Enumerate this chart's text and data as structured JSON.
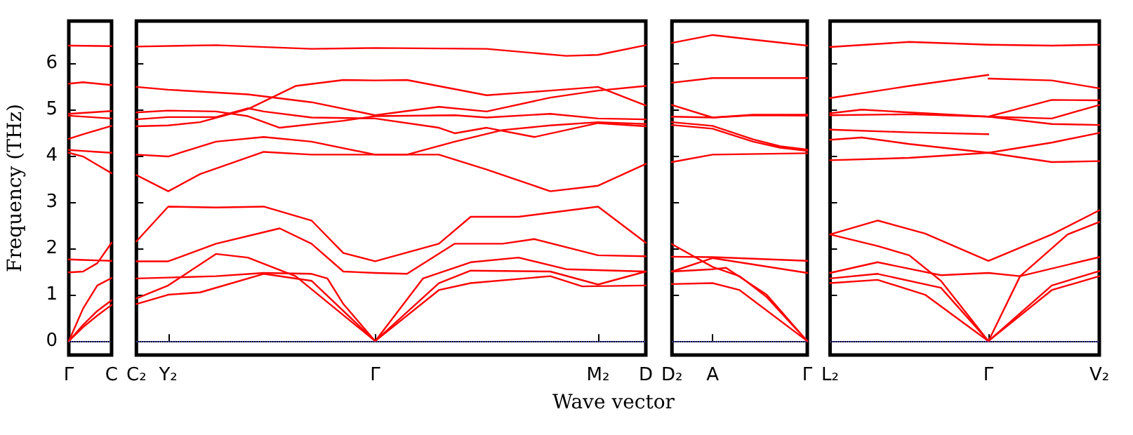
{
  "chart_data": [
    {
      "type": "line",
      "ylabel": "Frequency (THz)",
      "categories": [
        "Γ",
        null,
        null,
        "C"
      ],
      "ylim": [
        -0.3,
        6.9
      ],
      "yticks": [
        0,
        1,
        2,
        3,
        4,
        5,
        6
      ],
      "ref_lines": [
        {
          "axis": "y",
          "value": 0,
          "color": "#6666ff",
          "line_style": "dotted"
        }
      ],
      "series": [
        {
          "color": "#ff0000",
          "values": [
            6.37,
            null,
            null,
            6.36
          ]
        },
        {
          "color": "#ff0000",
          "values": [
            5.55,
            5.58,
            null,
            5.52
          ]
        },
        {
          "color": "#ff0000",
          "values": [
            4.9,
            null,
            null,
            4.96
          ]
        },
        {
          "color": "#ff0000",
          "values": [
            4.86,
            null,
            null,
            4.8
          ]
        },
        {
          "color": "#ff0000",
          "values": [
            4.36,
            4.46,
            4.55,
            4.64
          ]
        },
        {
          "color": "#ff0000",
          "values": [
            4.12,
            4.1,
            4.08,
            4.06
          ]
        },
        {
          "color": "#ff0000",
          "values": [
            4.06,
            3.98,
            3.8,
            3.62
          ]
        },
        {
          "color": "#ff0000",
          "values": [
            1.76,
            1.75,
            1.74,
            1.73
          ]
        },
        {
          "color": "#ff0000",
          "values": [
            1.48,
            1.5,
            1.68,
            2.12
          ]
        },
        {
          "color": "#ff0000",
          "values": [
            0,
            0.7,
            1.2,
            1.36
          ]
        },
        {
          "color": "#ff0000",
          "values": [
            0,
            0.35,
            0.65,
            0.88
          ]
        },
        {
          "color": "#ff0000",
          "values": [
            0,
            0.3,
            0.55,
            0.78
          ]
        }
      ]
    },
    {
      "type": "line",
      "xlabel": "Wave vector",
      "tick_labels": "x",
      "categories": [
        "C₂",
        null,
        "Y₂",
        null,
        null,
        null,
        null,
        null,
        null,
        null,
        null,
        null,
        null,
        null,
        null,
        "Γ",
        null,
        null,
        null,
        null,
        null,
        null,
        null,
        null,
        null,
        null,
        null,
        null,
        null,
        "M₂",
        null,
        null,
        "D"
      ],
      "ylim": [
        -0.3,
        6.9
      ],
      "yticks": [
        0,
        1,
        2,
        3,
        4,
        5,
        6
      ],
      "ref_lines": [
        {
          "axis": "y",
          "value": 0,
          "color": "#6666ff",
          "line_style": "dotted"
        }
      ],
      "series": [
        {
          "color": "#ff0000",
          "values": [
            6.35,
            null,
            null,
            null,
            null,
            6.38,
            null,
            null,
            null,
            null,
            null,
            6.3,
            null,
            null,
            null,
            6.32,
            null,
            null,
            null,
            null,
            null,
            null,
            6.3,
            null,
            null,
            null,
            null,
            6.15,
            null,
            6.17,
            null,
            null,
            6.38
          ]
        },
        {
          "color": "#ff0000",
          "values": [
            5.48,
            null,
            5.42,
            null,
            null,
            null,
            null,
            5.32,
            null,
            null,
            null,
            5.15,
            null,
            null,
            null,
            4.87,
            null,
            null,
            null,
            5.05,
            null,
            null,
            4.95,
            null,
            null,
            null,
            5.25,
            null,
            null,
            5.4,
            null,
            null,
            5.5
          ]
        },
        {
          "color": "#ff0000",
          "values": [
            4.63,
            null,
            4.65,
            null,
            4.72,
            null,
            null,
            5.0,
            null,
            null,
            5.5,
            null,
            null,
            5.63,
            null,
            5.62,
            null,
            5.63,
            null,
            null,
            null,
            null,
            5.3,
            null,
            null,
            null,
            5.4,
            null,
            null,
            5.48,
            null,
            null,
            5.08
          ]
        },
        {
          "color": "#ff0000",
          "values": [
            4.93,
            null,
            4.97,
            null,
            null,
            4.95,
            null,
            4.85,
            null,
            4.6,
            null,
            null,
            null,
            4.75,
            null,
            4.85,
            null,
            null,
            null,
            null,
            4.87,
            null,
            4.82,
            null,
            null,
            null,
            4.9,
            null,
            null,
            4.8,
            null,
            null,
            4.78
          ]
        },
        {
          "color": "#ff0000",
          "values": [
            4.78,
            null,
            4.83,
            null,
            null,
            4.83,
            null,
            5.02,
            4.95,
            null,
            null,
            4.82,
            null,
            null,
            null,
            4.8,
            null,
            null,
            null,
            4.6,
            4.48,
            null,
            4.6,
            null,
            null,
            4.4,
            null,
            null,
            null,
            4.7,
            null,
            null,
            4.63
          ]
        },
        {
          "color": "#ff0000",
          "values": [
            4.02,
            null,
            3.98,
            null,
            null,
            4.3,
            null,
            null,
            4.4,
            null,
            null,
            4.3,
            null,
            null,
            null,
            4.02,
            null,
            4.02,
            null,
            null,
            4.3,
            null,
            null,
            4.55,
            null,
            null,
            4.65,
            null,
            null,
            4.72,
            null,
            null,
            4.68
          ]
        },
        {
          "color": "#ff0000",
          "values": [
            3.58,
            null,
            3.23,
            null,
            3.6,
            null,
            null,
            null,
            4.08,
            null,
            null,
            4.02,
            null,
            null,
            null,
            4.02,
            null,
            null,
            null,
            4.02,
            null,
            null,
            3.7,
            null,
            null,
            null,
            3.23,
            null,
            null,
            3.35,
            null,
            null,
            3.82
          ]
        },
        {
          "color": "#ff0000",
          "values": [
            2.15,
            null,
            2.9,
            null,
            null,
            2.88,
            null,
            null,
            2.9,
            null,
            null,
            2.6,
            null,
            1.9,
            null,
            1.72,
            null,
            null,
            null,
            2.1,
            null,
            2.68,
            null,
            null,
            2.68,
            null,
            null,
            null,
            null,
            2.9,
            null,
            null,
            2.12
          ]
        },
        {
          "color": "#ff0000",
          "values": [
            1.72,
            null,
            1.72,
            null,
            null,
            2.1,
            null,
            null,
            null,
            2.43,
            null,
            2.1,
            null,
            1.5,
            null,
            1.47,
            null,
            1.45,
            null,
            null,
            2.1,
            null,
            null,
            2.1,
            null,
            2.2,
            null,
            null,
            null,
            1.85,
            null,
            null,
            1.83
          ]
        },
        {
          "color": "#ff0000",
          "values": [
            1.35,
            null,
            1.37,
            null,
            null,
            1.4,
            null,
            null,
            1.47,
            null,
            null,
            1.45,
            1.35,
            0.8,
            null,
            0,
            null,
            null,
            1.35,
            null,
            null,
            1.7,
            null,
            null,
            1.8,
            null,
            null,
            1.55,
            null,
            null,
            null,
            null,
            1.5
          ]
        },
        {
          "color": "#ff0000",
          "values": [
            0.92,
            null,
            1.2,
            null,
            null,
            1.88,
            null,
            1.8,
            null,
            null,
            1.4,
            null,
            null,
            null,
            null,
            0,
            null,
            null,
            null,
            1.25,
            null,
            1.52,
            null,
            null,
            null,
            null,
            1.5,
            null,
            null,
            1.22,
            null,
            null,
            1.5
          ]
        },
        {
          "color": "#ff0000",
          "values": [
            0.8,
            null,
            1.0,
            null,
            1.05,
            null,
            null,
            null,
            1.45,
            null,
            null,
            1.3,
            null,
            null,
            null,
            0,
            null,
            null,
            null,
            1.1,
            null,
            1.25,
            null,
            null,
            null,
            null,
            1.4,
            null,
            1.18,
            null,
            null,
            null,
            1.2
          ]
        }
      ]
    },
    {
      "type": "line",
      "tick_labels": "x",
      "categories": [
        "D₂",
        null,
        null,
        "A",
        null,
        null,
        null,
        null,
        null,
        null,
        "Γ"
      ],
      "ylim": [
        -0.3,
        6.9
      ],
      "yticks": [
        0,
        1,
        2,
        3,
        4,
        5,
        6
      ],
      "ref_lines": [
        {
          "axis": "y",
          "value": 0,
          "color": "#6666ff",
          "line_style": "dotted"
        }
      ],
      "series": [
        {
          "color": "#ff0000",
          "values": [
            6.43,
            null,
            null,
            6.6,
            null,
            null,
            6.5,
            null,
            null,
            null,
            6.37
          ]
        },
        {
          "color": "#ff0000",
          "values": [
            5.57,
            null,
            null,
            5.67,
            null,
            null,
            null,
            null,
            null,
            null,
            5.67
          ]
        },
        {
          "color": "#ff0000",
          "values": [
            5.09,
            null,
            null,
            4.82,
            null,
            null,
            4.87,
            null,
            null,
            null,
            4.86
          ]
        },
        {
          "color": "#ff0000",
          "values": [
            4.84,
            null,
            null,
            4.82,
            null,
            null,
            4.88,
            null,
            null,
            null,
            4.88
          ]
        },
        {
          "color": "#ff0000",
          "values": [
            4.72,
            null,
            null,
            4.64,
            null,
            null,
            4.35,
            null,
            4.2,
            null,
            4.13
          ]
        },
        {
          "color": "#ff0000",
          "values": [
            4.66,
            null,
            null,
            4.58,
            null,
            null,
            4.3,
            null,
            4.17,
            null,
            4.1
          ]
        },
        {
          "color": "#ff0000",
          "values": [
            3.86,
            null,
            null,
            4.02,
            null,
            null,
            null,
            null,
            null,
            null,
            4.05
          ]
        },
        {
          "color": "#ff0000",
          "values": [
            2.09,
            null,
            null,
            1.6,
            null,
            1.4,
            null,
            0.95,
            null,
            null,
            0
          ]
        },
        {
          "color": "#ff0000",
          "values": [
            1.82,
            null,
            null,
            1.81,
            null,
            null,
            null,
            null,
            null,
            null,
            1.73
          ]
        },
        {
          "color": "#ff0000",
          "values": [
            1.5,
            null,
            null,
            1.79,
            null,
            null,
            null,
            null,
            null,
            null,
            1.47
          ]
        },
        {
          "color": "#ff0000",
          "values": [
            1.5,
            null,
            null,
            1.55,
            1.58,
            null,
            null,
            1.0,
            null,
            null,
            0
          ]
        },
        {
          "color": "#ff0000",
          "values": [
            1.23,
            null,
            null,
            1.25,
            null,
            1.1,
            null,
            null,
            null,
            null,
            0
          ]
        }
      ]
    },
    {
      "type": "line",
      "tick_labels": "x",
      "categories": [
        "L₂",
        null,
        null,
        null,
        null,
        null,
        null,
        null,
        null,
        null,
        "Γ",
        null,
        null,
        null,
        null,
        null,
        null,
        "V₂"
      ],
      "ylim": [
        -0.3,
        6.9
      ],
      "yticks": [
        0,
        1,
        2,
        3,
        4,
        5,
        6
      ],
      "ref_lines": [
        {
          "axis": "y",
          "value": 0,
          "color": "#6666ff",
          "line_style": "dotted"
        }
      ],
      "series": [
        {
          "color": "#ff0000",
          "values": [
            6.34,
            null,
            null,
            null,
            null,
            6.45,
            null,
            null,
            null,
            null,
            6.39,
            null,
            null,
            null,
            6.37,
            null,
            null,
            6.39
          ]
        },
        {
          "color": "#ff0000",
          "values": [
            5.24,
            null,
            null,
            null,
            null,
            5.5,
            null,
            null,
            null,
            null,
            5.74,
            null,
            null,
            null,
            null,
            null,
            null,
            null
          ]
        },
        {
          "color": "#ff0000",
          "values": [
            null,
            null,
            null,
            null,
            null,
            null,
            null,
            null,
            null,
            null,
            5.66,
            null,
            null,
            null,
            5.62,
            null,
            null,
            5.45
          ]
        },
        {
          "color": "#ff0000",
          "values": [
            4.91,
            null,
            4.99,
            null,
            null,
            4.93,
            null,
            null,
            null,
            null,
            4.84,
            null,
            null,
            null,
            5.2,
            null,
            null,
            5.19
          ]
        },
        {
          "color": "#ff0000",
          "values": [
            4.87,
            null,
            null,
            null,
            null,
            4.89,
            null,
            null,
            null,
            null,
            4.84,
            null,
            null,
            null,
            4.8,
            null,
            null,
            5.09
          ]
        },
        {
          "color": "#ff0000",
          "values": [
            null,
            null,
            null,
            null,
            null,
            null,
            null,
            null,
            null,
            null,
            4.84,
            null,
            null,
            null,
            4.68,
            null,
            null,
            4.66
          ]
        },
        {
          "color": "#ff0000",
          "values": [
            4.56,
            null,
            null,
            null,
            null,
            4.5,
            null,
            null,
            null,
            null,
            4.46,
            null,
            null,
            null,
            null,
            null,
            null,
            null
          ]
        },
        {
          "color": "#ff0000",
          "values": [
            4.34,
            null,
            4.39,
            null,
            null,
            4.25,
            null,
            null,
            null,
            null,
            4.06,
            null,
            null,
            null,
            4.28,
            null,
            null,
            4.49
          ]
        },
        {
          "color": "#ff0000",
          "values": [
            3.9,
            null,
            null,
            null,
            null,
            3.95,
            null,
            null,
            null,
            null,
            4.06,
            null,
            null,
            null,
            3.86,
            null,
            null,
            3.88
          ]
        },
        {
          "color": "#ff0000",
          "values": [
            2.3,
            null,
            null,
            2.6,
            null,
            null,
            2.32,
            null,
            null,
            null,
            1.73,
            null,
            null,
            null,
            2.3,
            null,
            null,
            2.82
          ]
        },
        {
          "color": "#ff0000",
          "values": [
            2.3,
            null,
            null,
            2.05,
            null,
            1.85,
            null,
            1.3,
            null,
            null,
            0,
            null,
            1.4,
            null,
            null,
            2.3,
            null,
            2.57
          ]
        },
        {
          "color": "#ff0000",
          "values": [
            1.47,
            null,
            null,
            1.7,
            null,
            null,
            null,
            1.42,
            null,
            null,
            1.47,
            null,
            1.4,
            null,
            null,
            null,
            null,
            1.81
          ]
        },
        {
          "color": "#ff0000",
          "values": [
            1.35,
            null,
            null,
            1.45,
            null,
            null,
            null,
            1.15,
            null,
            null,
            0,
            null,
            null,
            null,
            1.2,
            null,
            null,
            1.51
          ]
        },
        {
          "color": "#ff0000",
          "values": [
            1.25,
            null,
            null,
            1.32,
            null,
            null,
            1.0,
            null,
            null,
            null,
            0,
            null,
            null,
            null,
            1.1,
            null,
            null,
            1.4
          ]
        }
      ]
    }
  ]
}
